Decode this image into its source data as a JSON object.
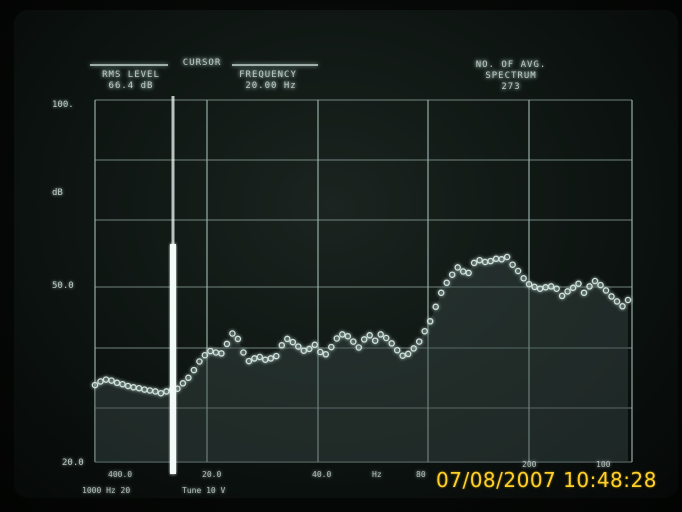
{
  "header": {
    "cursor_label": "CURSOR",
    "rms_level_label": "RMS LEVEL",
    "rms_level_value": "66.4 dB",
    "frequency_label": "FREQUENCY",
    "frequency_value": "20.00 Hz",
    "averages_label": "NO. OF AVG.",
    "spectrum_label": "SPECTRUM",
    "spectrum_count": "273"
  },
  "y_axis": {
    "top": "100.",
    "unit": "dB",
    "mid": "50.0",
    "bottom": "20.0"
  },
  "x_axis": {
    "t1": "400.0",
    "t2": "20.0",
    "t3": "40.0",
    "t4": "Hz",
    "t5": "80",
    "t6": "200",
    "t7": "100"
  },
  "footer": {
    "line1": "1000 Hz 20",
    "line2": "Tune 10 V"
  },
  "timestamp": "07/08/2007  10:48:28",
  "colors": {
    "trace": "#cfe3dd",
    "grid": "#9fb7b0",
    "cursor": "#f2fbf8",
    "stamp": "#ffd02a"
  },
  "chart_data": {
    "type": "line",
    "ylim": [
      20,
      100
    ],
    "grid": true,
    "cursor_x": 14.2,
    "series": [
      {
        "values": [
          [
            0,
            37
          ],
          [
            1,
            37.8
          ],
          [
            2,
            38.2
          ],
          [
            3,
            38
          ],
          [
            4,
            37.5
          ],
          [
            5,
            37.2
          ],
          [
            6,
            36.8
          ],
          [
            7,
            36.5
          ],
          [
            8,
            36.3
          ],
          [
            9,
            36
          ],
          [
            10,
            35.8
          ],
          [
            11,
            35.6
          ],
          [
            12,
            35.2
          ],
          [
            13,
            35.6
          ],
          [
            14,
            35.9
          ],
          [
            15,
            36.2
          ],
          [
            16,
            37.4
          ],
          [
            17,
            38.6
          ],
          [
            18,
            40.3
          ],
          [
            19,
            42.2
          ],
          [
            20,
            43.6
          ],
          [
            21,
            44.5
          ],
          [
            22,
            44.2
          ],
          [
            23,
            44
          ],
          [
            24,
            46.1
          ],
          [
            25,
            48.4
          ],
          [
            26,
            47.2
          ],
          [
            27,
            44.2
          ],
          [
            28,
            42.3
          ],
          [
            29,
            42.9
          ],
          [
            30,
            43.2
          ],
          [
            31,
            42.6
          ],
          [
            32,
            42.9
          ],
          [
            33,
            43.4
          ],
          [
            34,
            45.8
          ],
          [
            35,
            47.2
          ],
          [
            36,
            46.5
          ],
          [
            37,
            45.5
          ],
          [
            38,
            44.6
          ],
          [
            39,
            45
          ],
          [
            40,
            45.9
          ],
          [
            41,
            44.3
          ],
          [
            42,
            43.8
          ],
          [
            43,
            45.4
          ],
          [
            44,
            47.3
          ],
          [
            45,
            48.2
          ],
          [
            46,
            47.8
          ],
          [
            47,
            46.6
          ],
          [
            48,
            45.3
          ],
          [
            49,
            47.1
          ],
          [
            50,
            48
          ],
          [
            51,
            46.8
          ],
          [
            52,
            48.2
          ],
          [
            53,
            47.4
          ],
          [
            54,
            46.2
          ],
          [
            55,
            44.7
          ],
          [
            56,
            43.5
          ],
          [
            57,
            43.9
          ],
          [
            58,
            45.1
          ],
          [
            59,
            46.6
          ],
          [
            60,
            48.9
          ],
          [
            61,
            51.1
          ],
          [
            62,
            54.3
          ],
          [
            63,
            57.4
          ],
          [
            64,
            59.6
          ],
          [
            65,
            61.4
          ],
          [
            66,
            63
          ],
          [
            67,
            62.1
          ],
          [
            68,
            61.8
          ],
          [
            69,
            64
          ],
          [
            70,
            64.6
          ],
          [
            71,
            64.2
          ],
          [
            72,
            64.4
          ],
          [
            73,
            64.9
          ],
          [
            74,
            64.8
          ],
          [
            75,
            65.3
          ],
          [
            76,
            63.6
          ],
          [
            77,
            62.2
          ],
          [
            78,
            60.6
          ],
          [
            79,
            59.3
          ],
          [
            80,
            58.7
          ],
          [
            81,
            58.3
          ],
          [
            82,
            58.6
          ],
          [
            83,
            58.8
          ],
          [
            84,
            58.3
          ],
          [
            85,
            56.7
          ],
          [
            86,
            57.7
          ],
          [
            87,
            58.5
          ],
          [
            88,
            59.4
          ],
          [
            89,
            57.4
          ],
          [
            90,
            58.8
          ],
          [
            91,
            60
          ],
          [
            92,
            59.1
          ],
          [
            93,
            57.9
          ],
          [
            94,
            56.6
          ],
          [
            95,
            55.5
          ],
          [
            96,
            54.4
          ],
          [
            97,
            55.8
          ]
        ]
      }
    ]
  }
}
